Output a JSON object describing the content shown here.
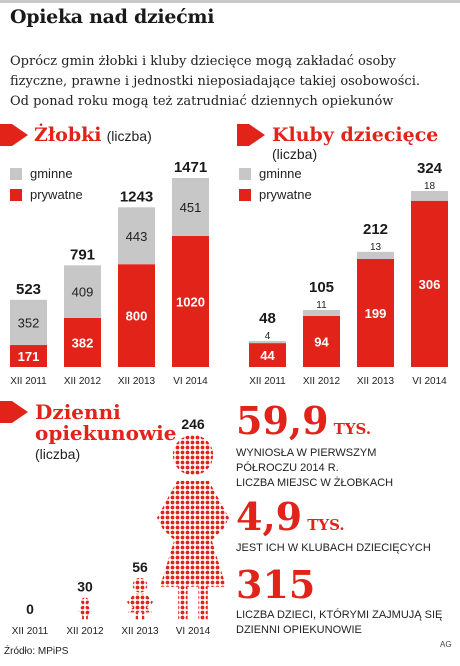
{
  "title": "Opieka nad dziećmi",
  "lead": [
    "Oprócz gmin żłobki i kluby dziecięce mogą zakładać osoby",
    "fizyczne, prawne i jednostki nieposiadające takiej osobowości.",
    "Od ponad roku mogą też zatrudniać dziennych opiekunów"
  ],
  "colors": {
    "red": "#e2231a",
    "gray": "#c7c7c7"
  },
  "zlobki": {
    "title": "Żłobki",
    "subtitle": "(liczba)",
    "legend": [
      "gminne",
      "prywatne"
    ]
  },
  "kluby": {
    "title": "Kluby dziecięce",
    "subtitle": "(liczba)",
    "legend": [
      "gminne",
      "prywatne"
    ]
  },
  "opiekunowie": {
    "title_line1": "Dzienni",
    "title_line2": "opiekunowie",
    "subtitle": "(liczba)"
  },
  "facts": [
    {
      "number": "59,9",
      "unit": "TYS.",
      "lines": [
        "WYNIOSŁA W PIERWSZYM",
        "PÓŁROCZU 2014 R.",
        "LICZBA MIEJSC W ŻŁOBKACH"
      ]
    },
    {
      "number": "4,9",
      "unit": "TYS.",
      "lines": [
        "JEST ICH W KLUBACH DZIECIĘCYCH"
      ]
    },
    {
      "number": "315",
      "unit": "",
      "lines": [
        "LICZBA DZIECI, KTÓRYMI ZAJMUJĄ SIĘ",
        "DZIENNI OPIEKUNOWIE"
      ]
    }
  ],
  "source": "Źródło: MPiPS",
  "credit": "AG",
  "chart_data": [
    {
      "type": "bar",
      "stacked": true,
      "title": "Żłobki (liczba)",
      "categories": [
        "XII 2011",
        "XII 2012",
        "XII 2013",
        "VI 2014"
      ],
      "series": [
        {
          "name": "prywatne",
          "values": [
            171,
            382,
            800,
            1020
          ]
        },
        {
          "name": "gminne",
          "values": [
            352,
            409,
            443,
            451
          ]
        }
      ],
      "totals": [
        523,
        791,
        1243,
        1471
      ],
      "ylim": [
        0,
        1471
      ]
    },
    {
      "type": "bar",
      "stacked": true,
      "title": "Kluby dziecięce (liczba)",
      "categories": [
        "XII 2011",
        "XII 2012",
        "XII 2013",
        "VI 2014"
      ],
      "series": [
        {
          "name": "prywatne",
          "values": [
            44,
            94,
            199,
            306
          ]
        },
        {
          "name": "gminne",
          "values": [
            4,
            11,
            13,
            18
          ]
        }
      ],
      "totals": [
        48,
        105,
        212,
        324
      ],
      "ylim": [
        0,
        324
      ]
    },
    {
      "type": "bar",
      "title": "Dzienni opiekunowie (liczba)",
      "categories": [
        "XII 2011",
        "XII 2012",
        "XII 2013",
        "VI 2014"
      ],
      "values": [
        0,
        30,
        56,
        246
      ],
      "ylim": [
        0,
        246
      ]
    }
  ]
}
